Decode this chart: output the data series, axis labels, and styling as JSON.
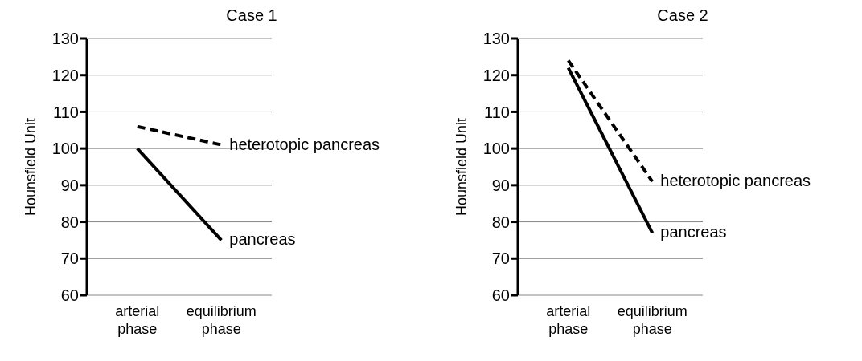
{
  "chart_data": [
    {
      "type": "line",
      "title": "Case 1",
      "ylabel": "Hounsfield Unit",
      "categories": [
        "arterial phase",
        "equilibrium phase"
      ],
      "ylim": [
        60,
        130
      ],
      "yticks": [
        60,
        70,
        80,
        90,
        100,
        110,
        120,
        130
      ],
      "grid": "y",
      "legend": false,
      "series": [
        {
          "name": "heterotopic pancreas",
          "color": "#000000",
          "line_style": "dashed",
          "values": [
            106,
            101
          ]
        },
        {
          "name": "pancreas",
          "color": "#000000",
          "line_style": "solid",
          "values": [
            100,
            75
          ]
        }
      ]
    },
    {
      "type": "line",
      "title": "Case 2",
      "ylabel": "Hounsfield Unit",
      "categories": [
        "arterial phase",
        "equilibrium phase"
      ],
      "ylim": [
        60,
        130
      ],
      "yticks": [
        60,
        70,
        80,
        90,
        100,
        110,
        120,
        130
      ],
      "grid": "y",
      "legend": false,
      "series": [
        {
          "name": "heterotopic pancreas",
          "color": "#000000",
          "line_style": "dashed",
          "values": [
            124,
            91
          ]
        },
        {
          "name": "pancreas",
          "color": "#000000",
          "line_style": "solid",
          "values": [
            122,
            77
          ]
        }
      ]
    }
  ]
}
